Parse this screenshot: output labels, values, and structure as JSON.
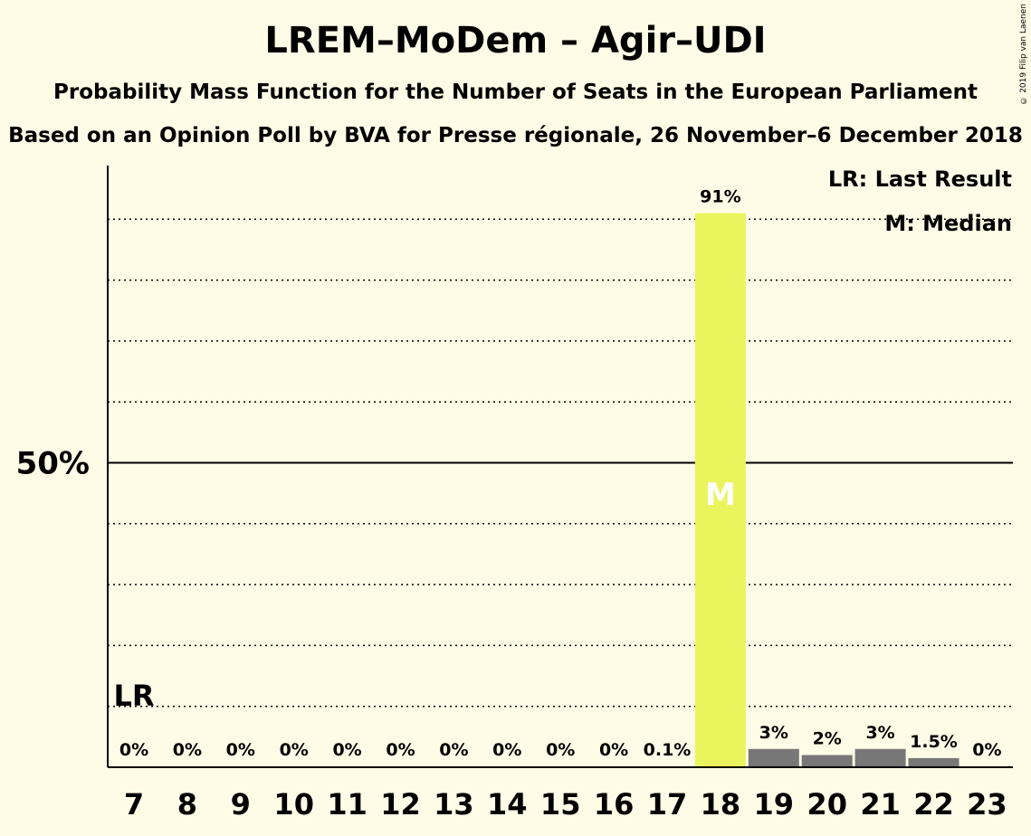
{
  "title": "LREM–MoDem – Agir–UDI",
  "subtitle": "Probability Mass Function for the Number of Seats in the European Parliament",
  "subtitle2": "Based on an Opinion Poll by BVA for Presse régionale, 26 November–6 December 2018",
  "copyright": "© 2019 Filip van Laenen",
  "legend": {
    "last_result": "LR: Last Result",
    "median": "M: Median"
  },
  "colors": {
    "background": "#fefce6",
    "median_bar": "#eaf55e",
    "other_bar": "#777777"
  },
  "chart_data": {
    "type": "bar",
    "categories": [
      "7",
      "8",
      "9",
      "10",
      "11",
      "12",
      "13",
      "14",
      "15",
      "16",
      "17",
      "18",
      "19",
      "20",
      "21",
      "22",
      "23"
    ],
    "values": [
      0,
      0,
      0,
      0,
      0,
      0,
      0,
      0,
      0,
      0,
      0.1,
      91,
      3,
      2,
      3,
      1.5,
      0
    ],
    "value_labels": [
      "0%",
      "0%",
      "0%",
      "0%",
      "0%",
      "0%",
      "0%",
      "0%",
      "0%",
      "0%",
      "0.1%",
      "91%",
      "3%",
      "2%",
      "3%",
      "1.5%",
      "0%"
    ],
    "ylim": [
      0,
      100
    ],
    "y_tick_label": "50%",
    "y_tick_value": 50,
    "gridlines": "dotted every 10%",
    "last_result_seat": "7",
    "last_result_marker": "LR",
    "median_seat": "18",
    "median_marker": "M"
  }
}
